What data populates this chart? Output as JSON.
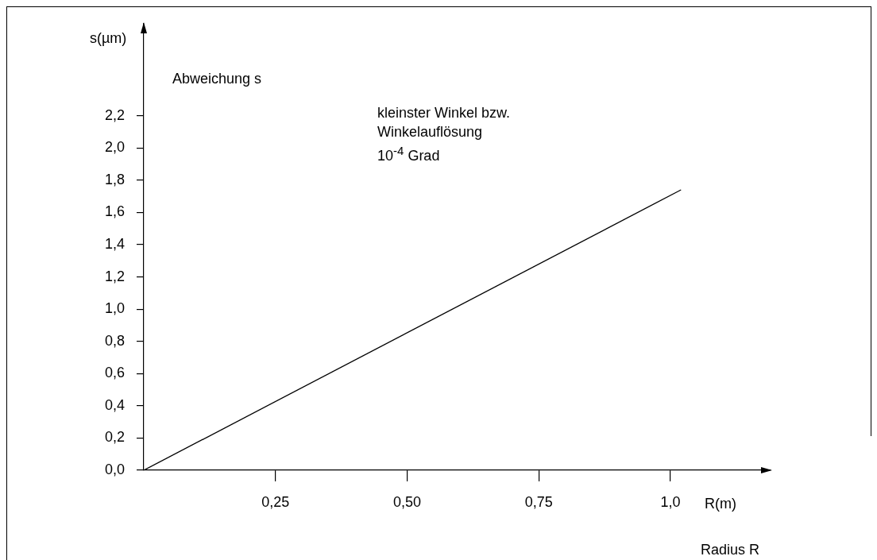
{
  "chart_data": {
    "type": "line",
    "title": "Abweichung s",
    "xlabel": "R(m)",
    "ylabel": "s(µm)",
    "annotations": [
      "kleinster Winkel bzw.\nWinkelauflösung\n10$^{-4}$ Grad",
      "Radius R"
    ],
    "x": [
      0,
      1.02
    ],
    "series": [
      {
        "color": "#000000",
        "values": [
          0,
          1.74
        ]
      }
    ],
    "xlim": [
      0,
      1.19
    ],
    "xticks": [
      {
        "value": 0.25,
        "label": "0,25"
      },
      {
        "value": 0.5,
        "label": "0,50"
      },
      {
        "value": 0.75,
        "label": "0,75"
      },
      {
        "value": 1,
        "label": "1,0"
      }
    ],
    "ylim": [
      0,
      2.77
    ],
    "yticks": [
      {
        "value": 0,
        "label": "0,0"
      },
      {
        "value": 0.2,
        "label": "0,2"
      },
      {
        "value": 0.4,
        "label": "0,4"
      },
      {
        "value": 0.6,
        "label": "0,6"
      },
      {
        "value": 0.8,
        "label": "0,8"
      },
      {
        "value": 1,
        "label": "1,0"
      },
      {
        "value": 1.2,
        "label": "1,2"
      },
      {
        "value": 1.4,
        "label": "1,4"
      },
      {
        "value": 1.6,
        "label": "1,6"
      },
      {
        "value": 1.8,
        "label": "1,8"
      },
      {
        "value": 2,
        "label": "2,0"
      },
      {
        "value": 2.2,
        "label": "2,2"
      }
    ],
    "legend": false,
    "marker": "none",
    "line_style": "solid"
  }
}
